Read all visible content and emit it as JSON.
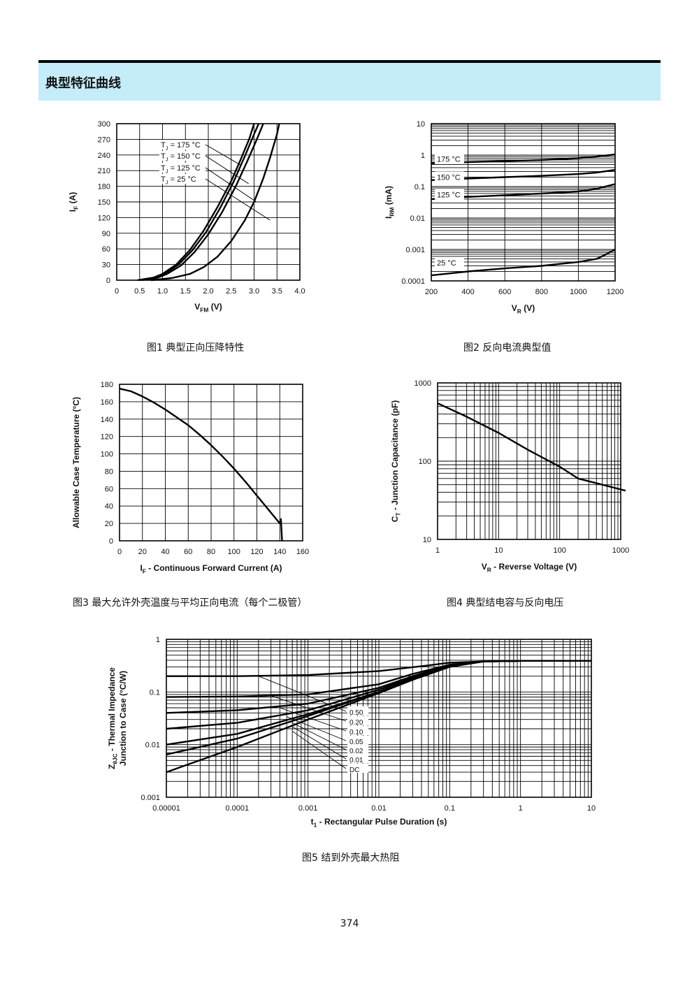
{
  "section": {
    "title": "典型特征曲线"
  },
  "captions": {
    "fig1": "图1  典型正向压降特性",
    "fig2": "图2  反向电流典型值",
    "fig3": "图3  最大允许外壳温度与平均正向电流（每个二极管）",
    "fig4": "图4  典型结电容与反向电压",
    "fig5": "图5  结到外壳最大热阻"
  },
  "page_number": "374",
  "chart_data": [
    {
      "id": "fig1",
      "type": "line",
      "xlabel": "V",
      "xlabel_sub": "FM",
      "xlabel_unit": " (V)",
      "ylabel": "I",
      "ylabel_sub": "F",
      "ylabel_unit": " (A)",
      "xlim": [
        0,
        4.0
      ],
      "ylim": [
        0,
        300
      ],
      "xticks": [
        0,
        0.5,
        1.0,
        1.5,
        2.0,
        2.5,
        3.0,
        3.5,
        4.0
      ],
      "xticklabels": [
        "0",
        "0.5",
        "1.0",
        "1.5",
        "2.0",
        "2.5",
        "3.0",
        "3.5",
        "4.0"
      ],
      "yticks": [
        0,
        30,
        60,
        90,
        120,
        150,
        180,
        210,
        240,
        270,
        300
      ],
      "grid": true,
      "series": [
        {
          "name": "T_J = 175 °C",
          "label_main": "T",
          "label_sub": "J",
          "label_rest": " = 175 °C",
          "points": [
            [
              0.45,
              0
            ],
            [
              0.8,
              5
            ],
            [
              1.0,
              12
            ],
            [
              1.3,
              30
            ],
            [
              1.6,
              58
            ],
            [
              1.9,
              95
            ],
            [
              2.2,
              140
            ],
            [
              2.5,
              190
            ],
            [
              2.7,
              230
            ],
            [
              2.9,
              272
            ],
            [
              3.0,
              300
            ]
          ]
        },
        {
          "name": "T_J = 150 °C",
          "label_main": "T",
          "label_sub": "J",
          "label_rest": " = 150 °C",
          "points": [
            [
              0.5,
              0
            ],
            [
              0.85,
              5
            ],
            [
              1.05,
              12
            ],
            [
              1.35,
              30
            ],
            [
              1.65,
              57
            ],
            [
              1.95,
              92
            ],
            [
              2.25,
              137
            ],
            [
              2.55,
              188
            ],
            [
              2.8,
              238
            ],
            [
              3.0,
              280
            ],
            [
              3.1,
              300
            ]
          ]
        },
        {
          "name": "T_J = 125 °C",
          "label_main": "T",
          "label_sub": "J",
          "label_rest": " = 125 °C",
          "points": [
            [
              0.55,
              0
            ],
            [
              0.9,
              5
            ],
            [
              1.1,
              12
            ],
            [
              1.4,
              28
            ],
            [
              1.7,
              54
            ],
            [
              2.0,
              88
            ],
            [
              2.3,
              130
            ],
            [
              2.6,
              180
            ],
            [
              2.85,
              228
            ],
            [
              3.05,
              268
            ],
            [
              3.2,
              300
            ]
          ]
        },
        {
          "name": "T_J = 25 °C",
          "label_main": "T",
          "label_sub": "J",
          "label_rest": " = 25 °C",
          "points": [
            [
              0.75,
              0
            ],
            [
              1.2,
              4
            ],
            [
              1.6,
              12
            ],
            [
              1.9,
              25
            ],
            [
              2.2,
              45
            ],
            [
              2.5,
              75
            ],
            [
              2.8,
              115
            ],
            [
              3.0,
              150
            ],
            [
              3.2,
              195
            ],
            [
              3.35,
              235
            ],
            [
              3.5,
              280
            ],
            [
              3.55,
              300
            ]
          ]
        }
      ],
      "legend_position": "top-left"
    },
    {
      "id": "fig2",
      "type": "line",
      "xlabel": "V",
      "xlabel_sub": "R",
      "xlabel_unit": " (V)",
      "ylabel": "I",
      "ylabel_sub": "RM",
      "ylabel_unit": " (mA)",
      "xlim": [
        200,
        1200
      ],
      "ylim": [
        0.0001,
        10
      ],
      "yscale": "log",
      "xticks": [
        200,
        400,
        600,
        800,
        1000,
        1200
      ],
      "xticklabels": [
        "200",
        "400",
        "600",
        "800",
        "1000",
        "1200"
      ],
      "yticks": [
        0.0001,
        0.001,
        0.01,
        0.1,
        1,
        10
      ],
      "yticklabels": [
        "0.0001",
        "0.001",
        "0.01",
        "0.1",
        "1",
        "10"
      ],
      "grid": true,
      "series": [
        {
          "name": "175 °C",
          "points": [
            [
              200,
              0.55
            ],
            [
              400,
              0.6
            ],
            [
              600,
              0.65
            ],
            [
              800,
              0.7
            ],
            [
              1000,
              0.8
            ],
            [
              1100,
              0.9
            ],
            [
              1200,
              1.05
            ]
          ]
        },
        {
          "name": "150 °C",
          "points": [
            [
              200,
              0.16
            ],
            [
              400,
              0.18
            ],
            [
              600,
              0.2
            ],
            [
              800,
              0.22
            ],
            [
              1000,
              0.25
            ],
            [
              1100,
              0.28
            ],
            [
              1200,
              0.34
            ]
          ]
        },
        {
          "name": "125 °C",
          "points": [
            [
              200,
              0.04
            ],
            [
              400,
              0.047
            ],
            [
              600,
              0.053
            ],
            [
              800,
              0.06
            ],
            [
              1000,
              0.07
            ],
            [
              1100,
              0.085
            ],
            [
              1200,
              0.12
            ]
          ]
        },
        {
          "name": "25 °C",
          "points": [
            [
              200,
              0.00015
            ],
            [
              400,
              0.0002
            ],
            [
              600,
              0.00025
            ],
            [
              800,
              0.0003
            ],
            [
              1000,
              0.0004
            ],
            [
              1100,
              0.0005
            ],
            [
              1150,
              0.0007
            ],
            [
              1200,
              0.001
            ]
          ]
        }
      ]
    },
    {
      "id": "fig3",
      "type": "line",
      "xlabel": "I",
      "xlabel_sub": "F",
      "xlabel_unit": " - Continuous Forward Current (A)",
      "ylabel": "Allowable Case Temperature (°C)",
      "xlim": [
        0,
        160
      ],
      "ylim": [
        0,
        180
      ],
      "xticks": [
        0,
        20,
        40,
        60,
        80,
        100,
        120,
        140,
        160
      ],
      "yticks": [
        0,
        20,
        40,
        60,
        80,
        100,
        120,
        140,
        160,
        180
      ],
      "grid": true,
      "series": [
        {
          "points": [
            [
              0,
              175
            ],
            [
              10,
              172
            ],
            [
              20,
              166
            ],
            [
              30,
              159
            ],
            [
              40,
              151
            ],
            [
              50,
              142
            ],
            [
              60,
              133
            ],
            [
              70,
              122
            ],
            [
              80,
              110
            ],
            [
              90,
              97
            ],
            [
              100,
              83
            ],
            [
              110,
              68
            ],
            [
              120,
              52
            ],
            [
              130,
              36
            ],
            [
              140,
              20
            ],
            [
              141,
              25
            ],
            [
              142,
              0
            ]
          ]
        }
      ]
    },
    {
      "id": "fig4",
      "type": "line",
      "xlabel": "V",
      "xlabel_sub": "R",
      "xlabel_unit": " - Reverse Voltage (V)",
      "ylabel": "C",
      "ylabel_sub": "T",
      "ylabel_unit": " - Junction Capacitance (pF)",
      "xlim": [
        1,
        1000
      ],
      "ylim": [
        10,
        1000
      ],
      "xscale": "log",
      "yscale": "log",
      "xticks": [
        1,
        10,
        100,
        1000
      ],
      "xticklabels": [
        "1",
        "10",
        "100",
        "1000"
      ],
      "yticks": [
        10,
        100,
        1000
      ],
      "yticklabels": [
        "10",
        "100",
        "1000"
      ],
      "grid": true,
      "series": [
        {
          "points": [
            [
              1,
              550
            ],
            [
              3,
              370
            ],
            [
              10,
              230
            ],
            [
              30,
              140
            ],
            [
              100,
              85
            ],
            [
              200,
              60
            ],
            [
              500,
              50
            ],
            [
              1200,
              42
            ]
          ]
        }
      ]
    },
    {
      "id": "fig5",
      "type": "line",
      "xlabel": "t",
      "xlabel_sub": "1",
      "xlabel_unit": " - Rectangular Pulse Duration (s)",
      "ylabel_line1": "Z",
      "ylabel_line1_sub": "θJC",
      "ylabel_line1_rest": " - Thermal Impedance",
      "ylabel_line2": "Junction to Case (°C/W)",
      "xlim": [
        1e-05,
        10
      ],
      "ylim": [
        0.001,
        1
      ],
      "xscale": "log",
      "yscale": "log",
      "xticks": [
        1e-05,
        0.0001,
        0.001,
        0.01,
        0.1,
        1,
        10
      ],
      "xticklabels": [
        "0.00001",
        "0.0001",
        "0.001",
        "0.01",
        "0.1",
        "1",
        "10"
      ],
      "yticks": [
        0.001,
        0.01,
        0.1,
        1
      ],
      "yticklabels": [
        "0.001",
        "0.01",
        "0.1",
        "1"
      ],
      "grid": true,
      "series": [
        {
          "name": "0.50",
          "points": [
            [
              1e-05,
              0.2
            ],
            [
              0.0001,
              0.2
            ],
            [
              0.001,
              0.21
            ],
            [
              0.01,
              0.25
            ],
            [
              0.05,
              0.32
            ],
            [
              0.1,
              0.36
            ],
            [
              0.3,
              0.38
            ],
            [
              1,
              0.39
            ],
            [
              10,
              0.39
            ]
          ]
        },
        {
          "name": "0.20",
          "points": [
            [
              1e-05,
              0.08
            ],
            [
              0.0001,
              0.082
            ],
            [
              0.001,
              0.09
            ],
            [
              0.01,
              0.14
            ],
            [
              0.03,
              0.22
            ],
            [
              0.1,
              0.33
            ],
            [
              0.3,
              0.38
            ],
            [
              1,
              0.39
            ],
            [
              10,
              0.39
            ]
          ]
        },
        {
          "name": "0.10",
          "points": [
            [
              1e-05,
              0.04
            ],
            [
              0.0001,
              0.045
            ],
            [
              0.001,
              0.06
            ],
            [
              0.01,
              0.12
            ],
            [
              0.03,
              0.2
            ],
            [
              0.1,
              0.32
            ],
            [
              0.3,
              0.38
            ],
            [
              1,
              0.39
            ],
            [
              10,
              0.39
            ]
          ]
        },
        {
          "name": "0.05",
          "points": [
            [
              1e-05,
              0.02
            ],
            [
              0.0001,
              0.026
            ],
            [
              0.001,
              0.045
            ],
            [
              0.01,
              0.11
            ],
            [
              0.03,
              0.19
            ],
            [
              0.1,
              0.31
            ],
            [
              0.3,
              0.38
            ],
            [
              1,
              0.39
            ],
            [
              10,
              0.39
            ]
          ]
        },
        {
          "name": "0.02",
          "points": [
            [
              1e-05,
              0.01
            ],
            [
              0.0001,
              0.016
            ],
            [
              0.001,
              0.038
            ],
            [
              0.01,
              0.1
            ],
            [
              0.03,
              0.18
            ],
            [
              0.1,
              0.31
            ],
            [
              0.3,
              0.38
            ],
            [
              1,
              0.39
            ],
            [
              10,
              0.39
            ]
          ]
        },
        {
          "name": "0.01",
          "points": [
            [
              1e-05,
              0.0065
            ],
            [
              0.0001,
              0.013
            ],
            [
              0.001,
              0.035
            ],
            [
              0.01,
              0.1
            ],
            [
              0.03,
              0.18
            ],
            [
              0.1,
              0.31
            ],
            [
              0.3,
              0.38
            ],
            [
              1,
              0.39
            ],
            [
              10,
              0.39
            ]
          ]
        },
        {
          "name": "DC",
          "points": [
            [
              1e-05,
              0.003
            ],
            [
              0.0001,
              0.009
            ],
            [
              0.001,
              0.03
            ],
            [
              0.01,
              0.095
            ],
            [
              0.03,
              0.17
            ],
            [
              0.1,
              0.3
            ],
            [
              0.3,
              0.38
            ],
            [
              1,
              0.39
            ],
            [
              10,
              0.39
            ]
          ]
        }
      ]
    }
  ]
}
